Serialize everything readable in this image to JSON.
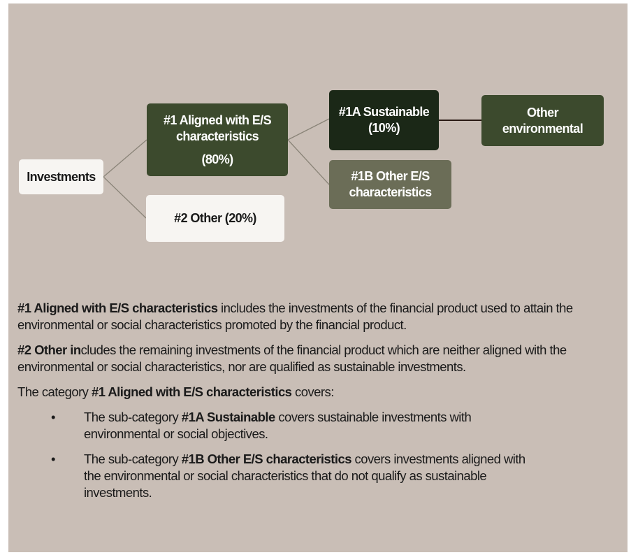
{
  "diagram": {
    "nodes": [
      {
        "id": "investments",
        "lines": [
          "Investments"
        ]
      },
      {
        "id": "aligned",
        "lines": [
          "#1 Aligned with E/S",
          "characteristics",
          "(80%)"
        ]
      },
      {
        "id": "other",
        "lines": [
          "#2 Other (20%)"
        ]
      },
      {
        "id": "sustainable",
        "lines": [
          "#1A Sustainable",
          "(10%)"
        ]
      },
      {
        "id": "other-es",
        "lines": [
          "#1B Other E/S",
          "characteristics"
        ]
      },
      {
        "id": "other-env",
        "lines": [
          "Other",
          "environmental"
        ]
      }
    ]
  },
  "text": {
    "paragraphs": [
      [
        {
          "text": "#1 Aligned with E/S characteristics",
          "bold": true
        },
        {
          "text": " includes the investments of the financial product used to attain the environmental or social characteristics promoted by the financial product.",
          "bold": false
        }
      ],
      [
        {
          "text": "#2 Other in",
          "bold": true
        },
        {
          "text": "cludes the remaining investments of the financial product which are neither aligned with the environmental or social characteristics, nor are qualified as sustainable investments.",
          "bold": false
        }
      ],
      [
        {
          "text": "The category ",
          "bold": false
        },
        {
          "text": "#1 Aligned with E/S characteristics",
          "bold": true
        },
        {
          "text": " covers:",
          "bold": false
        }
      ]
    ],
    "bullets": [
      [
        {
          "text": "The sub-category ",
          "bold": false
        },
        {
          "text": "#1A Sustainable",
          "bold": true
        },
        {
          "text": " covers sustainable investments with environmental or social objectives.",
          "bold": false
        }
      ],
      [
        {
          "text": "The sub-category ",
          "bold": false
        },
        {
          "text": "#1B Other E/S characteristics",
          "bold": true
        },
        {
          "text": " covers investments aligned with the environmental or social characteristics that do not qualify as sustainable investments.",
          "bold": false
        }
      ]
    ]
  }
}
